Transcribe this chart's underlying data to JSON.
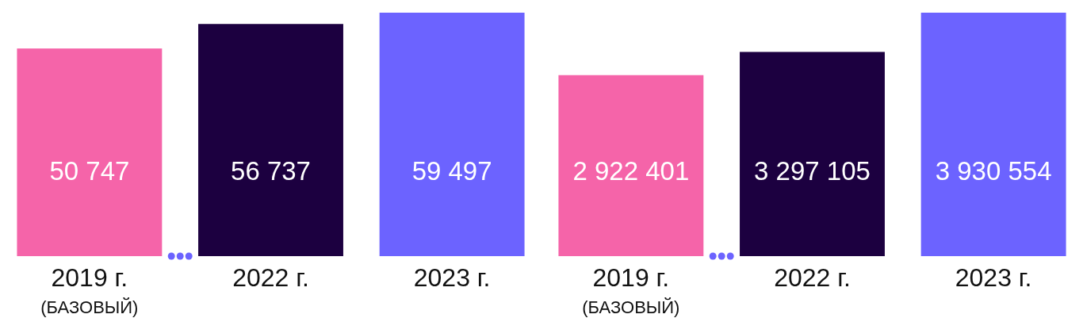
{
  "chart_data": [
    {
      "type": "bar",
      "categories": [
        "2019 г.\n(БАЗОВЫЙ)",
        "2022 г.",
        "2023 г."
      ],
      "values": [
        50747,
        56737,
        59497
      ],
      "colors": [
        "#f564a9",
        "#1c0040",
        "#6c63ff"
      ],
      "data_labels": true
    },
    {
      "type": "bar",
      "categories": [
        "2019 г.\n(БАЗОВЫЙ)",
        "2022 г.",
        "2023 г."
      ],
      "values": [
        2922401,
        3297105,
        3930554
      ],
      "colors": [
        "#f564a9",
        "#1c0040",
        "#6c63ff"
      ],
      "data_labels": true
    }
  ]
}
